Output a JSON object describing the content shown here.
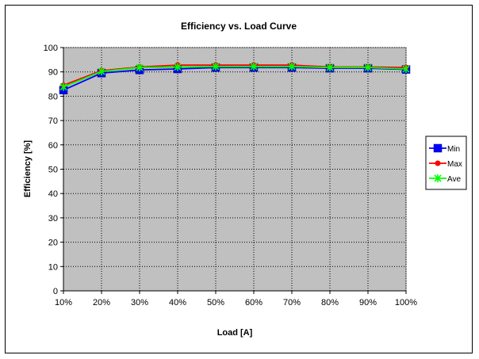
{
  "chart_data": {
    "type": "line",
    "title": "Efficiency vs. Load Curve",
    "xlabel": "Load [A]",
    "ylabel": "Efficiency [%]",
    "categories": [
      "10%",
      "20%",
      "30%",
      "40%",
      "50%",
      "60%",
      "70%",
      "80%",
      "90%",
      "100%"
    ],
    "ylim": [
      0,
      100
    ],
    "ytick_step": 10,
    "grid": true,
    "plot_background": "#C0C0C0",
    "legend_position": "right",
    "series": [
      {
        "name": "Min",
        "color": "#0000FF",
        "marker": "square",
        "values": [
          82.5,
          89.5,
          90.8,
          91.2,
          91.8,
          91.8,
          91.8,
          91.5,
          91.5,
          91.0
        ]
      },
      {
        "name": "Max",
        "color": "#FF0000",
        "marker": "diamond",
        "values": [
          84.5,
          90.5,
          92.0,
          92.8,
          92.8,
          92.8,
          92.8,
          92.0,
          92.0,
          91.8
        ]
      },
      {
        "name": "Ave",
        "color": "#00FF00",
        "marker": "star",
        "values": [
          83.8,
          90.2,
          91.8,
          92.0,
          92.2,
          92.2,
          92.2,
          91.8,
          91.8,
          91.2
        ]
      }
    ]
  }
}
